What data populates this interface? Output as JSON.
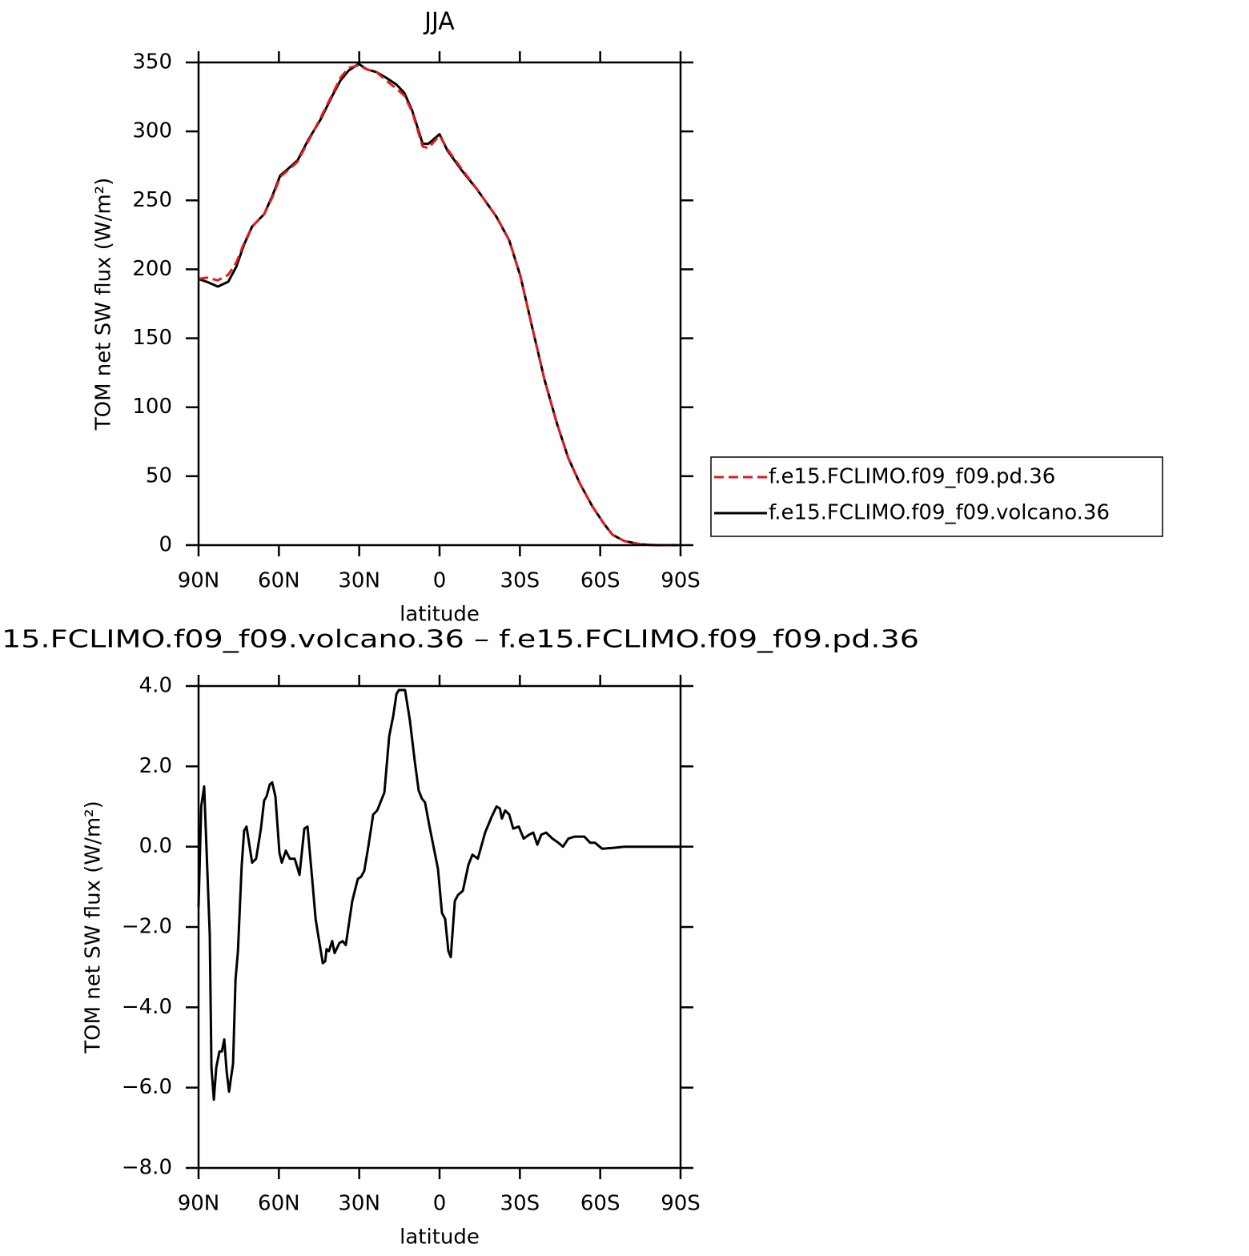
{
  "chart_data": [
    {
      "type": "line",
      "title": "JJA",
      "xlabel": "latitude",
      "ylabel": "TOM net SW flux (W/m²)",
      "xlim": [
        90,
        -90
      ],
      "xticks": [
        {
          "value": 90,
          "label": "90N"
        },
        {
          "value": 60,
          "label": "60N"
        },
        {
          "value": 30,
          "label": "30N"
        },
        0,
        {
          "value": -30,
          "label": "30S"
        },
        {
          "value": -60,
          "label": "60S"
        },
        {
          "value": -90,
          "label": "90S"
        }
      ],
      "ylim": [
        0,
        350
      ],
      "yticks": [
        0,
        50,
        100,
        150,
        200,
        250,
        300,
        350
      ],
      "legend": "right",
      "x": [
        90,
        87,
        82.8,
        78.9,
        75.9,
        73,
        70,
        65.5,
        62.5,
        59.5,
        56.5,
        53,
        49,
        44.6,
        40,
        37,
        34,
        30.2,
        27.2,
        23.6,
        20,
        16.1,
        13.2,
        10.2,
        6.3,
        4.2,
        0,
        -3,
        -8.2,
        -14,
        -21.3,
        -26,
        -30.2,
        -34.7,
        -39.2,
        -43.7,
        -48.1,
        -52.6,
        -57.1,
        -61.6,
        -64.6,
        -69,
        -75,
        -81,
        -90
      ],
      "series": [
        {
          "name": "f.e15.FCLIMO.f09_f09.pd.36",
          "color": "#e41a1c",
          "linestyle": "dashed",
          "values": [
            193,
            194,
            192,
            196,
            205,
            219,
            231,
            240,
            252,
            267,
            272,
            278,
            293,
            309,
            327,
            339,
            346,
            348,
            345,
            343,
            337,
            331,
            326,
            314,
            289,
            288,
            297,
            287,
            273,
            258,
            238,
            221,
            195,
            157,
            120,
            89,
            63,
            44,
            28,
            15,
            7.5,
            3,
            0.6,
            0,
            0
          ]
        },
        {
          "name": "f.e15.FCLIMO.f09_f09.volcano.36",
          "color": "#000000",
          "linestyle": "solid",
          "values": [
            193,
            191,
            187.5,
            191,
            202,
            218,
            231,
            240,
            253,
            268,
            273,
            279,
            294,
            308,
            326,
            337,
            344,
            349,
            345,
            343,
            339,
            334,
            328,
            315,
            291,
            291,
            298,
            286,
            272,
            258,
            238,
            221,
            195,
            157,
            120,
            89,
            63,
            44,
            28,
            15,
            7.5,
            3,
            0.6,
            0,
            0
          ]
        }
      ]
    },
    {
      "type": "line",
      "title": "15.FCLIMO.f09_f09.volcano.36 – f.e15.FCLIMO.f09_f09.pd.36",
      "xlabel": "latitude",
      "ylabel": "TOM net SW flux (W/m²)",
      "xlim": [
        90,
        -90
      ],
      "xticks": [
        {
          "value": 90,
          "label": "90N"
        },
        {
          "value": 60,
          "label": "60N"
        },
        {
          "value": 30,
          "label": "30N"
        },
        0,
        {
          "value": -30,
          "label": "30S"
        },
        {
          "value": -60,
          "label": "60S"
        },
        {
          "value": -90,
          "label": "90S"
        }
      ],
      "ylim": [
        -8,
        4
      ],
      "yticks": [
        {
          "value": -8,
          "label": "−8.0"
        },
        {
          "value": -6,
          "label": "−6.0"
        },
        {
          "value": -4,
          "label": "−4.0"
        },
        {
          "value": -2,
          "label": "−2.0"
        },
        {
          "value": 0,
          "label": "0.0"
        },
        {
          "value": 2,
          "label": "2.0"
        },
        {
          "value": 4,
          "label": "4.0"
        }
      ],
      "x": [
        90,
        89,
        87.9,
        85.8,
        85.2,
        84.3,
        83.4,
        82.2,
        81.3,
        80.4,
        79.5,
        78.6,
        77.1,
        76.2,
        75.3,
        73.9,
        73,
        72.1,
        70,
        68.5,
        66.7,
        65.5,
        64.6,
        63.4,
        62.5,
        61.3,
        59.8,
        58.9,
        57.4,
        55.9,
        54.1,
        52.3,
        50.5,
        49.3,
        47.5,
        46.3,
        45.1,
        43.6,
        42.7,
        42.2,
        41.3,
        40.1,
        39.2,
        37.4,
        36.2,
        35,
        32.6,
        30.5,
        29.3,
        28.1,
        26.6,
        24.8,
        23.3,
        21.8,
        20.6,
        18.8,
        17.3,
        16.1,
        15.2,
        12.9,
        11.1,
        9.3,
        7.8,
        6.6,
        5.4,
        3.9,
        2.1,
        0.6,
        -0.9,
        -2.1,
        -3.3,
        -4.2,
        -5.7,
        -6.9,
        -8.7,
        -10.8,
        -12.3,
        -14.3,
        -17,
        -19.5,
        -21.3,
        -22.5,
        -23.3,
        -24.5,
        -26,
        -27.5,
        -29.6,
        -31.4,
        -33.5,
        -35,
        -36.5,
        -38,
        -39.8,
        -42.2,
        -44.3,
        -46.1,
        -48.1,
        -50.5,
        -54.1,
        -56.2,
        -58,
        -60.7,
        -64.6,
        -69,
        -90
      ],
      "series": [
        {
          "color": "#000000",
          "linestyle": "solid",
          "values": [
            -1.5,
            1.0,
            1.5,
            -2.2,
            -5.5,
            -6.3,
            -5.5,
            -5.1,
            -5.1,
            -4.8,
            -5.6,
            -6.1,
            -5.4,
            -3.3,
            -2.6,
            -0.5,
            0.4,
            0.5,
            -0.4,
            -0.3,
            0.45,
            1.15,
            1.25,
            1.55,
            1.6,
            1.25,
            -0.15,
            -0.4,
            -0.1,
            -0.3,
            -0.3,
            -0.7,
            0.45,
            0.5,
            -0.85,
            -1.8,
            -2.3,
            -2.9,
            -2.85,
            -2.55,
            -2.6,
            -2.35,
            -2.65,
            -2.4,
            -2.35,
            -2.45,
            -1.35,
            -0.8,
            -0.75,
            -0.6,
            0,
            0.8,
            0.9,
            1.15,
            1.35,
            2.75,
            3.25,
            3.8,
            3.9,
            3.9,
            3.15,
            2.15,
            1.4,
            1.2,
            1.1,
            0.55,
            -0.05,
            -0.55,
            -1.65,
            -1.8,
            -2.6,
            -2.75,
            -1.35,
            -1.2,
            -1.1,
            -0.45,
            -0.2,
            -0.3,
            0.35,
            0.75,
            1.0,
            0.95,
            0.7,
            0.9,
            0.8,
            0.45,
            0.5,
            0.2,
            0.3,
            0.35,
            0.05,
            0.3,
            0.35,
            0.2,
            0.1,
            0,
            0.2,
            0.25,
            0.25,
            0.1,
            0.1,
            -0.05,
            -0.03,
            0,
            0
          ]
        }
      ]
    }
  ]
}
